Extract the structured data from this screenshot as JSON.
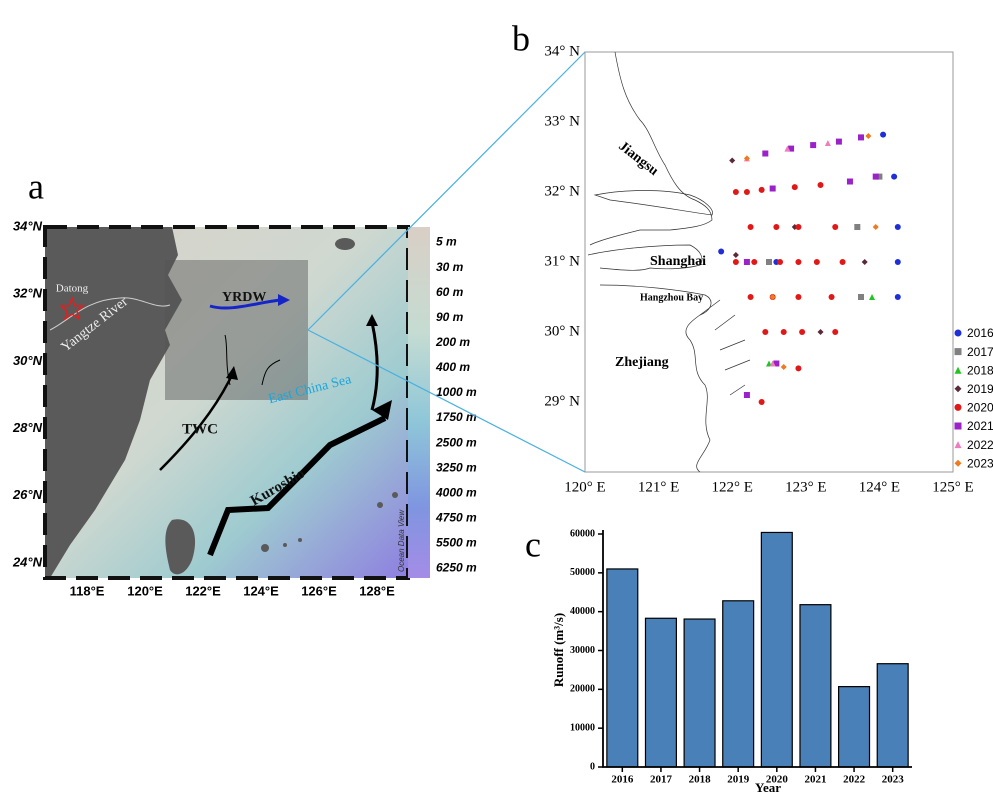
{
  "chart_data": [
    {
      "type": "map",
      "panel_label": "a",
      "xlim": [
        116.55,
        129.07
      ],
      "ylim": [
        23.55,
        34
      ],
      "xticks": [
        {
          "value": 118,
          "label": "118°E"
        },
        {
          "value": 120,
          "label": "120°E"
        },
        {
          "value": 122,
          "label": "122°E"
        },
        {
          "value": 124,
          "label": "124°E"
        },
        {
          "value": 126,
          "label": "126°E"
        },
        {
          "value": 128,
          "label": "128°E"
        }
      ],
      "yticks": [
        {
          "value": 24,
          "label": "24°N"
        },
        {
          "value": 26,
          "label": "26°N"
        },
        {
          "value": 28,
          "label": "28°N"
        },
        {
          "value": 30,
          "label": "30°N"
        },
        {
          "value": 32,
          "label": "32°N"
        },
        {
          "value": 34,
          "label": "34°N"
        }
      ],
      "labels": {
        "datong": "Datong",
        "river": "Yangtze River",
        "yrdw": "YRDW",
        "twc": "TWC",
        "sea": "East China Sea",
        "kuroshio": "Kuroshio",
        "credit": "Ocean Data View"
      },
      "colorbar": [
        "5 m",
        "30 m",
        "60 m",
        "90 m",
        "200 m",
        "400 m",
        "1000 m",
        "1750 m",
        "2500 m",
        "3250 m",
        "4000 m",
        "4750 m",
        "5500 m",
        "6250 m"
      ]
    },
    {
      "type": "scatter",
      "panel_label": "b",
      "xlim": [
        120,
        125
      ],
      "ylim": [
        28,
        34
      ],
      "xticks": [
        {
          "value": 120,
          "label": "120° E"
        },
        {
          "value": 121,
          "label": "121° E"
        },
        {
          "value": 122,
          "label": "122° E"
        },
        {
          "value": 123,
          "label": "123° E"
        },
        {
          "value": 124,
          "label": "124° E"
        },
        {
          "value": 125,
          "label": "125° E"
        }
      ],
      "yticks": [
        {
          "value": 29,
          "label": "29° N"
        },
        {
          "value": 30,
          "label": "30° N"
        },
        {
          "value": 31,
          "label": "31° N"
        },
        {
          "value": 32,
          "label": "32° N"
        },
        {
          "value": 33,
          "label": "33° N"
        },
        {
          "value": 34,
          "label": "34° N"
        }
      ],
      "places": {
        "jiangsu": "Jiangsu",
        "shanghai": "Shanghai",
        "bay": "Hangzhou Bay",
        "zhejiang": "Zhejiang"
      },
      "series": [
        {
          "name": "2016",
          "color": "#1f2fd6",
          "marker": "circle",
          "x": [
            124.05,
            124.2,
            124.25,
            124.25,
            124.25,
            121.85,
            122.6
          ],
          "y": [
            32.82,
            32.22,
            31.5,
            31.0,
            30.5,
            31.15,
            31.0
          ]
        },
        {
          "name": "2017",
          "color": "#808080",
          "marker": "square",
          "x": [
            123.7,
            123.75,
            122.5,
            124.0
          ],
          "y": [
            31.5,
            30.5,
            31.0,
            32.22
          ]
        },
        {
          "name": "2018",
          "color": "#22c422",
          "marker": "triangle",
          "x": [
            123.9,
            122.5
          ],
          "y": [
            30.5,
            29.55
          ]
        },
        {
          "name": "2019",
          "color": "#5a2a3a",
          "marker": "diamond",
          "x": [
            122.0,
            122.05,
            123.8,
            123.2,
            122.85
          ],
          "y": [
            32.45,
            31.1,
            31.0,
            30.0,
            31.5
          ]
        },
        {
          "name": "2020",
          "color": "#e01818",
          "marker": "circle",
          "x": [
            122.05,
            122.2,
            122.4,
            122.85,
            123.2,
            122.25,
            122.6,
            122.9,
            123.4,
            122.05,
            122.3,
            122.65,
            122.9,
            123.15,
            123.5,
            122.25,
            122.55,
            122.9,
            123.35,
            122.45,
            122.7,
            122.95,
            123.4,
            122.9,
            122.4
          ],
          "y": [
            32.0,
            32.0,
            32.03,
            32.07,
            32.1,
            31.5,
            31.5,
            31.5,
            31.5,
            31.0,
            31.0,
            31.0,
            31.0,
            31.0,
            31.0,
            30.5,
            30.5,
            30.5,
            30.5,
            30.0,
            30.0,
            30.0,
            30.0,
            29.48,
            29.0
          ]
        },
        {
          "name": "2021",
          "color": "#9b22c8",
          "marker": "square",
          "x": [
            122.45,
            122.8,
            123.1,
            123.45,
            123.75,
            122.55,
            123.6,
            123.95,
            122.2,
            122.6,
            122.2
          ],
          "y": [
            32.55,
            32.62,
            32.67,
            32.72,
            32.78,
            32.05,
            32.15,
            32.22,
            31.0,
            29.55,
            29.1
          ]
        },
        {
          "name": "2022",
          "color": "#f07cc0",
          "marker": "triangle",
          "x": [
            122.2,
            122.75,
            123.3,
            122.55
          ],
          "y": [
            32.48,
            32.62,
            32.7,
            29.55
          ]
        },
        {
          "name": "2023",
          "color": "#f07a1e",
          "marker": "diamond",
          "x": [
            122.2,
            123.85,
            123.95,
            122.55,
            122.7
          ],
          "y": [
            32.48,
            32.8,
            31.5,
            30.5,
            29.5
          ]
        }
      ]
    },
    {
      "type": "bar",
      "panel_label": "c",
      "x_label": "Year",
      "y_label": "Runoff (m³/s)",
      "categories": [
        "2016",
        "2017",
        "2018",
        "2019",
        "2020",
        "2021",
        "2022",
        "2023"
      ],
      "values": [
        51000,
        38300,
        38100,
        42800,
        60400,
        41800,
        20700,
        26600
      ],
      "color": "#4a80b8",
      "ylim": [
        0,
        60000
      ],
      "yticks": [
        0,
        10000,
        20000,
        30000,
        40000,
        50000,
        60000
      ]
    }
  ]
}
